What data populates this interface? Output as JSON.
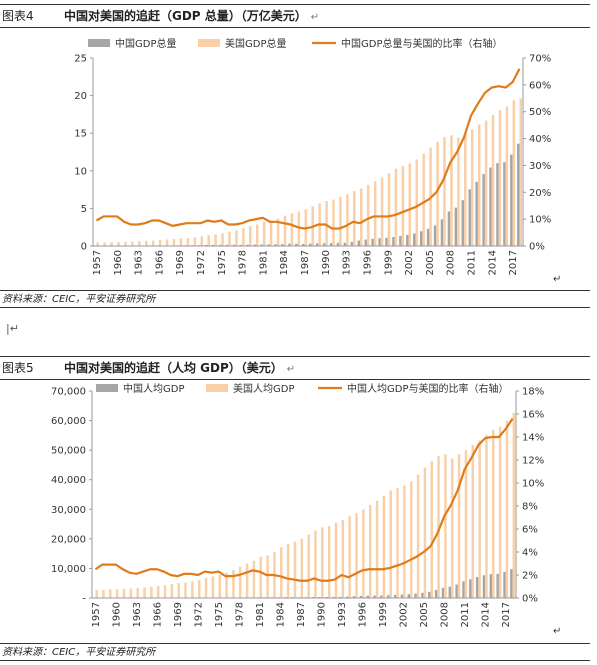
{
  "figures": [
    {
      "id": "fig4",
      "number": "图表4",
      "title": "中国对美国的追赶（GDP 总量）（万亿美元）",
      "return_mark": "↵",
      "source": "资料来源：CEIC，平安证券研究所",
      "chart_data": {
        "type": "bar",
        "legend": [
          "中国GDP总量",
          "美国GDP总量",
          "中国GDP总量与美国的比率（右轴）"
        ],
        "x_tick_labels": [
          "1957",
          "1960",
          "1963",
          "1966",
          "1969",
          "1972",
          "1975",
          "1978",
          "1981",
          "1984",
          "1987",
          "1990",
          "1993",
          "1996",
          "1999",
          "2002",
          "2005",
          "2008",
          "2011",
          "2014",
          "2017"
        ],
        "left_axis": {
          "min": 0,
          "max": 25,
          "ticks": [
            "0",
            "5",
            "10",
            "15",
            "20",
            "25"
          ]
        },
        "right_axis": {
          "min": 0,
          "max": 0.7,
          "ticks": [
            "0%",
            "10%",
            "20%",
            "30%",
            "40%",
            "50%",
            "60%",
            "70%"
          ]
        },
        "x": [
          1957,
          1958,
          1959,
          1960,
          1961,
          1962,
          1963,
          1964,
          1965,
          1966,
          1967,
          1968,
          1969,
          1970,
          1971,
          1972,
          1973,
          1974,
          1975,
          1976,
          1977,
          1978,
          1979,
          1980,
          1981,
          1982,
          1983,
          1984,
          1985,
          1986,
          1987,
          1988,
          1989,
          1990,
          1991,
          1992,
          1993,
          1994,
          1995,
          1996,
          1997,
          1998,
          1999,
          2000,
          2001,
          2002,
          2003,
          2004,
          2005,
          2006,
          2007,
          2008,
          2009,
          2010,
          2011,
          2012,
          2013,
          2014,
          2015,
          2016,
          2017,
          2018
        ],
        "series": [
          {
            "name": "中国GDP总量",
            "kind": "bar",
            "axis": "left",
            "color": "#a6a6a6",
            "values": [
              0.05,
              0.06,
              0.06,
              0.06,
              0.05,
              0.05,
              0.05,
              0.06,
              0.07,
              0.08,
              0.07,
              0.07,
              0.08,
              0.09,
              0.1,
              0.11,
              0.14,
              0.14,
              0.16,
              0.15,
              0.17,
              0.15,
              0.18,
              0.19,
              0.2,
              0.21,
              0.23,
              0.26,
              0.31,
              0.3,
              0.27,
              0.31,
              0.35,
              0.36,
              0.38,
              0.43,
              0.44,
              0.56,
              0.73,
              0.86,
              0.96,
              1.03,
              1.09,
              1.21,
              1.34,
              1.47,
              1.66,
              1.96,
              2.29,
              2.75,
              3.55,
              4.59,
              5.1,
              6.09,
              7.55,
              8.53,
              9.57,
              10.44,
              11.02,
              11.14,
              12.14,
              13.61
            ]
          },
          {
            "name": "美国GDP总量",
            "kind": "bar",
            "axis": "left",
            "color": "#f8cfa6",
            "values": [
              0.47,
              0.48,
              0.51,
              0.54,
              0.56,
              0.6,
              0.64,
              0.69,
              0.74,
              0.81,
              0.86,
              0.94,
              1.02,
              1.07,
              1.16,
              1.28,
              1.43,
              1.55,
              1.69,
              1.88,
              2.09,
              2.36,
              2.63,
              2.86,
              3.21,
              3.34,
              3.64,
              4.04,
              4.35,
              4.59,
              4.87,
              5.25,
              5.66,
              5.98,
              6.17,
              6.54,
              6.88,
              7.31,
              7.66,
              8.1,
              8.61,
              9.09,
              9.66,
              10.28,
              10.62,
              10.98,
              11.51,
              12.27,
              13.09,
              13.86,
              14.48,
              14.72,
              14.42,
              14.96,
              15.52,
              16.16,
              16.69,
              17.39,
              18.04,
              18.57,
              19.39,
              19.61
            ]
          },
          {
            "name": "中国GDP总量与美国的比率（右轴）",
            "kind": "line",
            "axis": "right",
            "color": "#e07b1a",
            "values": [
              0.095,
              0.11,
              0.11,
              0.11,
              0.09,
              0.08,
              0.08,
              0.085,
              0.095,
              0.095,
              0.085,
              0.075,
              0.08,
              0.085,
              0.085,
              0.085,
              0.095,
              0.09,
              0.095,
              0.08,
              0.08,
              0.085,
              0.095,
              0.1,
              0.105,
              0.09,
              0.09,
              0.085,
              0.08,
              0.07,
              0.065,
              0.07,
              0.08,
              0.08,
              0.065,
              0.065,
              0.075,
              0.09,
              0.085,
              0.1,
              0.11,
              0.11,
              0.11,
              0.115,
              0.125,
              0.135,
              0.145,
              0.16,
              0.175,
              0.2,
              0.245,
              0.31,
              0.35,
              0.405,
              0.485,
              0.53,
              0.57,
              0.59,
              0.595,
              0.59,
              0.61,
              0.66
            ]
          }
        ]
      }
    },
    {
      "id": "fig5",
      "number": "图表5",
      "title": "中国对美国的追赶（人均 GDP）（美元）",
      "return_mark": "↵",
      "source": "资料来源：CEIC，平安证券研究所",
      "chart_data": {
        "type": "bar",
        "legend": [
          "中国人均GDP",
          "美国人均GDP",
          "中国人均GDP与美国的比率（右轴）"
        ],
        "x_tick_labels": [
          "1957",
          "1960",
          "1963",
          "1966",
          "1969",
          "1972",
          "1975",
          "1978",
          "1981",
          "1984",
          "1987",
          "1990",
          "1993",
          "1996",
          "1999",
          "2002",
          "2005",
          "2008",
          "2011",
          "2014",
          "2017"
        ],
        "left_axis": {
          "min": 0,
          "max": 70000,
          "ticks": [
            "-",
            "10,000",
            "20,000",
            "30,000",
            "40,000",
            "50,000",
            "60,000",
            "70,000"
          ]
        },
        "right_axis": {
          "min": 0,
          "max": 0.18,
          "ticks": [
            "0%",
            "2%",
            "4%",
            "6%",
            "8%",
            "10%",
            "12%",
            "14%",
            "16%",
            "18%"
          ]
        },
        "x": [
          1957,
          1958,
          1959,
          1960,
          1961,
          1962,
          1963,
          1964,
          1965,
          1966,
          1967,
          1968,
          1969,
          1970,
          1971,
          1972,
          1973,
          1974,
          1975,
          1976,
          1977,
          1978,
          1979,
          1980,
          1981,
          1982,
          1983,
          1984,
          1985,
          1986,
          1987,
          1988,
          1989,
          1990,
          1991,
          1992,
          1993,
          1994,
          1995,
          1996,
          1997,
          1998,
          1999,
          2000,
          2001,
          2002,
          2003,
          2004,
          2005,
          2006,
          2007,
          2008,
          2009,
          2010,
          2011,
          2012,
          2013,
          2014,
          2015,
          2016,
          2017,
          2018
        ],
        "series": [
          {
            "name": "中国人均GDP",
            "kind": "bar",
            "axis": "left",
            "color": "#a6a6a6",
            "values": [
              70,
              80,
              80,
              90,
              75,
              70,
              70,
              85,
              95,
              100,
              90,
              90,
              95,
              110,
              115,
              120,
              155,
              160,
              180,
              165,
              185,
              155,
              185,
              195,
              200,
              205,
              225,
              250,
              290,
              280,
              250,
              280,
              310,
              320,
              330,
              370,
              380,
              470,
              610,
              710,
              780,
              830,
              870,
              960,
              1050,
              1150,
              1290,
              1510,
              1760,
              2100,
              2700,
              3470,
              3830,
              4550,
              5620,
              6320,
              7080,
              7680,
              8070,
              8150,
              8830,
              9770
            ]
          },
          {
            "name": "美国人均GDP",
            "kind": "bar",
            "axis": "left",
            "color": "#f8cfa6",
            "values": [
              2750,
              2770,
              2950,
              3000,
              3060,
              3220,
              3350,
              3560,
              3800,
              4110,
              4320,
              4700,
              5040,
              5230,
              5610,
              6110,
              6740,
              7240,
              7820,
              8610,
              9450,
              10560,
              11670,
              12580,
              13980,
              14430,
              15560,
              17120,
              18240,
              19070,
              20040,
              21420,
              22860,
              23890,
              24340,
              25470,
              26390,
              27690,
              28690,
              29960,
              31460,
              32850,
              34510,
              36330,
              37130,
              38040,
              39490,
              41720,
              44120,
              46300,
              48050,
              48570,
              47190,
              48650,
              50070,
              51780,
              53290,
              55120,
              56830,
              57930,
              59930,
              62640
            ]
          },
          {
            "name": "中国人均GDP与美国的比率（右轴）",
            "kind": "line",
            "axis": "right",
            "color": "#e07b1a",
            "values": [
              0.025,
              0.029,
              0.029,
              0.029,
              0.025,
              0.022,
              0.021,
              0.023,
              0.025,
              0.025,
              0.023,
              0.02,
              0.019,
              0.021,
              0.021,
              0.02,
              0.023,
              0.022,
              0.023,
              0.019,
              0.019,
              0.02,
              0.022,
              0.024,
              0.023,
              0.02,
              0.02,
              0.019,
              0.017,
              0.016,
              0.015,
              0.015,
              0.017,
              0.015,
              0.015,
              0.016,
              0.02,
              0.018,
              0.021,
              0.024,
              0.025,
              0.025,
              0.025,
              0.026,
              0.028,
              0.03,
              0.033,
              0.036,
              0.04,
              0.045,
              0.056,
              0.071,
              0.081,
              0.094,
              0.112,
              0.122,
              0.133,
              0.139,
              0.14,
              0.14,
              0.147,
              0.156
            ]
          }
        ]
      }
    }
  ]
}
